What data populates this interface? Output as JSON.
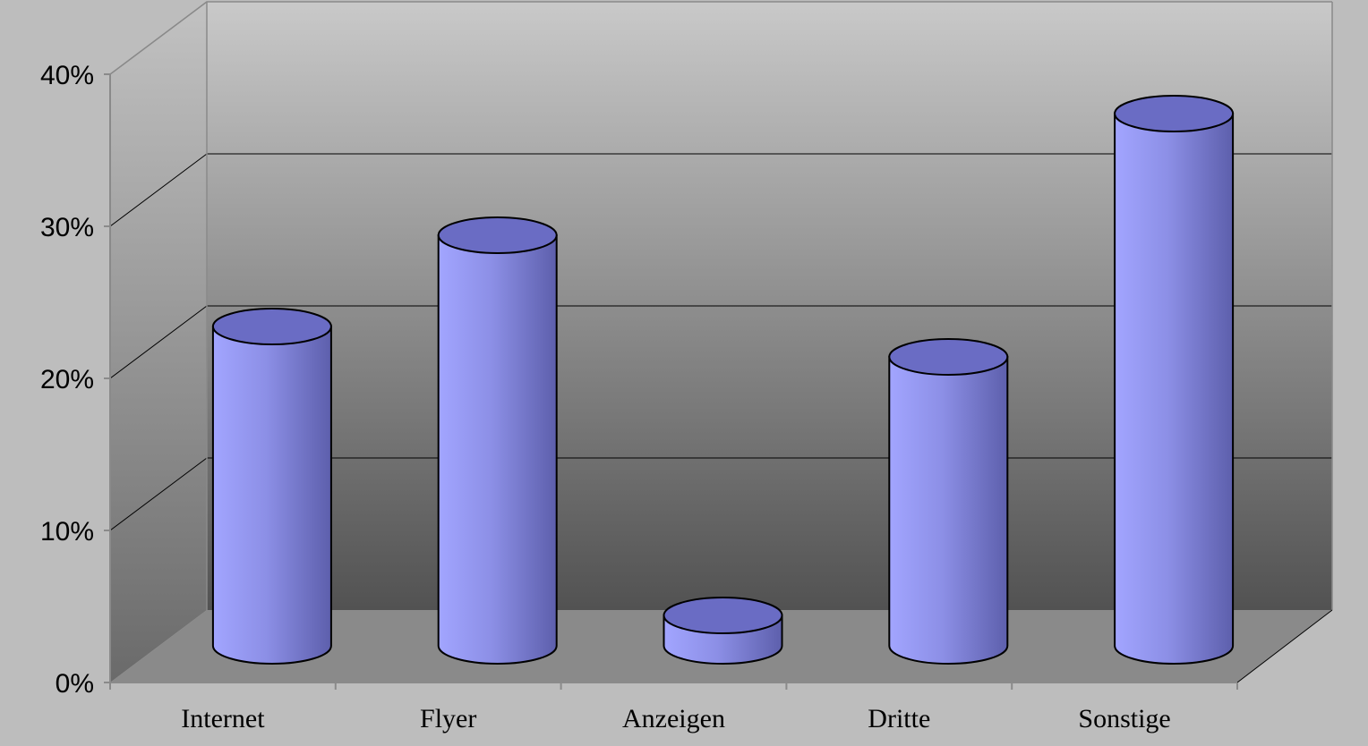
{
  "chart_data": {
    "type": "bar",
    "style": "3d-cylinder",
    "categories": [
      "Internet",
      "Flyer",
      "Anzeigen",
      "Dritte",
      "Sonstige"
    ],
    "values": [
      21,
      27,
      2,
      19,
      35
    ],
    "value_unit": "%",
    "y_tick_labels": [
      "0%",
      "10%",
      "20%",
      "30%",
      "40%"
    ],
    "ylim": [
      0,
      40
    ],
    "grid": true,
    "legend": "none",
    "colors": {
      "bar_front": "#8c8fe6",
      "bar_light": "#a2a5ff",
      "bar_dark": "#5d5fac",
      "bar_top": "#6a6cc4",
      "back_wall_top": "#c9c9c9",
      "back_wall_bottom": "#525252",
      "floor": "#8a8a8a",
      "frame": "#bdbdbd"
    }
  }
}
